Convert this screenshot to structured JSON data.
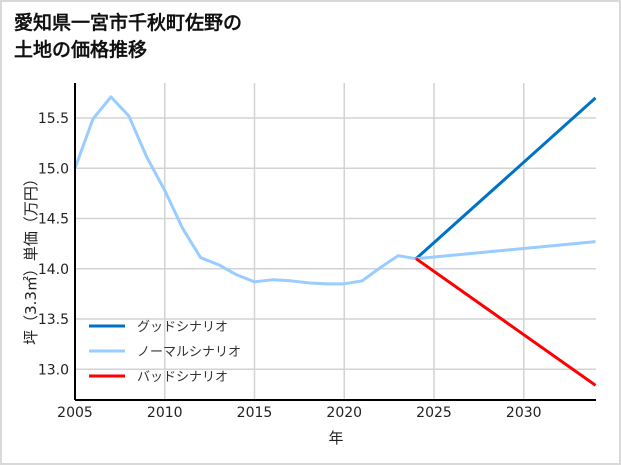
{
  "title": "愛知県一宮市千秋町佐野の\n土地の価格推移",
  "chart_data": {
    "type": "line",
    "title": "愛知県一宮市千秋町佐野の土地の価格推移",
    "xlabel": "年",
    "ylabel": "坪（3.3㎡）単価（万円）",
    "xlim": [
      2005,
      2034
    ],
    "ylim": [
      12.72,
      15.85
    ],
    "xticks": [
      2005,
      2010,
      2015,
      2020,
      2025,
      2030
    ],
    "yticks": [
      13.0,
      13.5,
      14.0,
      14.5,
      15.0,
      15.5
    ],
    "ytick_labels": [
      "13.0",
      "13.5",
      "14.0",
      "14.5",
      "15.0",
      "15.5"
    ],
    "grid": true,
    "legend_position": "lower left",
    "historical": {
      "x": [
        2005,
        2006,
        2007,
        2008,
        2009,
        2010,
        2011,
        2012,
        2013,
        2014,
        2015,
        2016,
        2017,
        2018,
        2019,
        2020,
        2021,
        2022,
        2023,
        2024
      ],
      "y": [
        15.0,
        15.49,
        15.71,
        15.52,
        15.11,
        14.78,
        14.4,
        14.11,
        14.04,
        13.94,
        13.87,
        13.89,
        13.88,
        13.86,
        13.85,
        13.85,
        13.88,
        14.01,
        14.13,
        14.1
      ]
    },
    "series": [
      {
        "name": "グッドシナリオ",
        "color": "#0072C6",
        "x": [
          2024,
          2034
        ],
        "values": [
          14.1,
          15.7
        ]
      },
      {
        "name": "ノーマルシナリオ",
        "color": "#99CCFF",
        "x": [
          2024,
          2034
        ],
        "values": [
          14.1,
          14.27
        ]
      },
      {
        "name": "バッドシナリオ",
        "color": "#FF0000",
        "x": [
          2024,
          2034
        ],
        "values": [
          14.1,
          12.84
        ]
      }
    ]
  }
}
